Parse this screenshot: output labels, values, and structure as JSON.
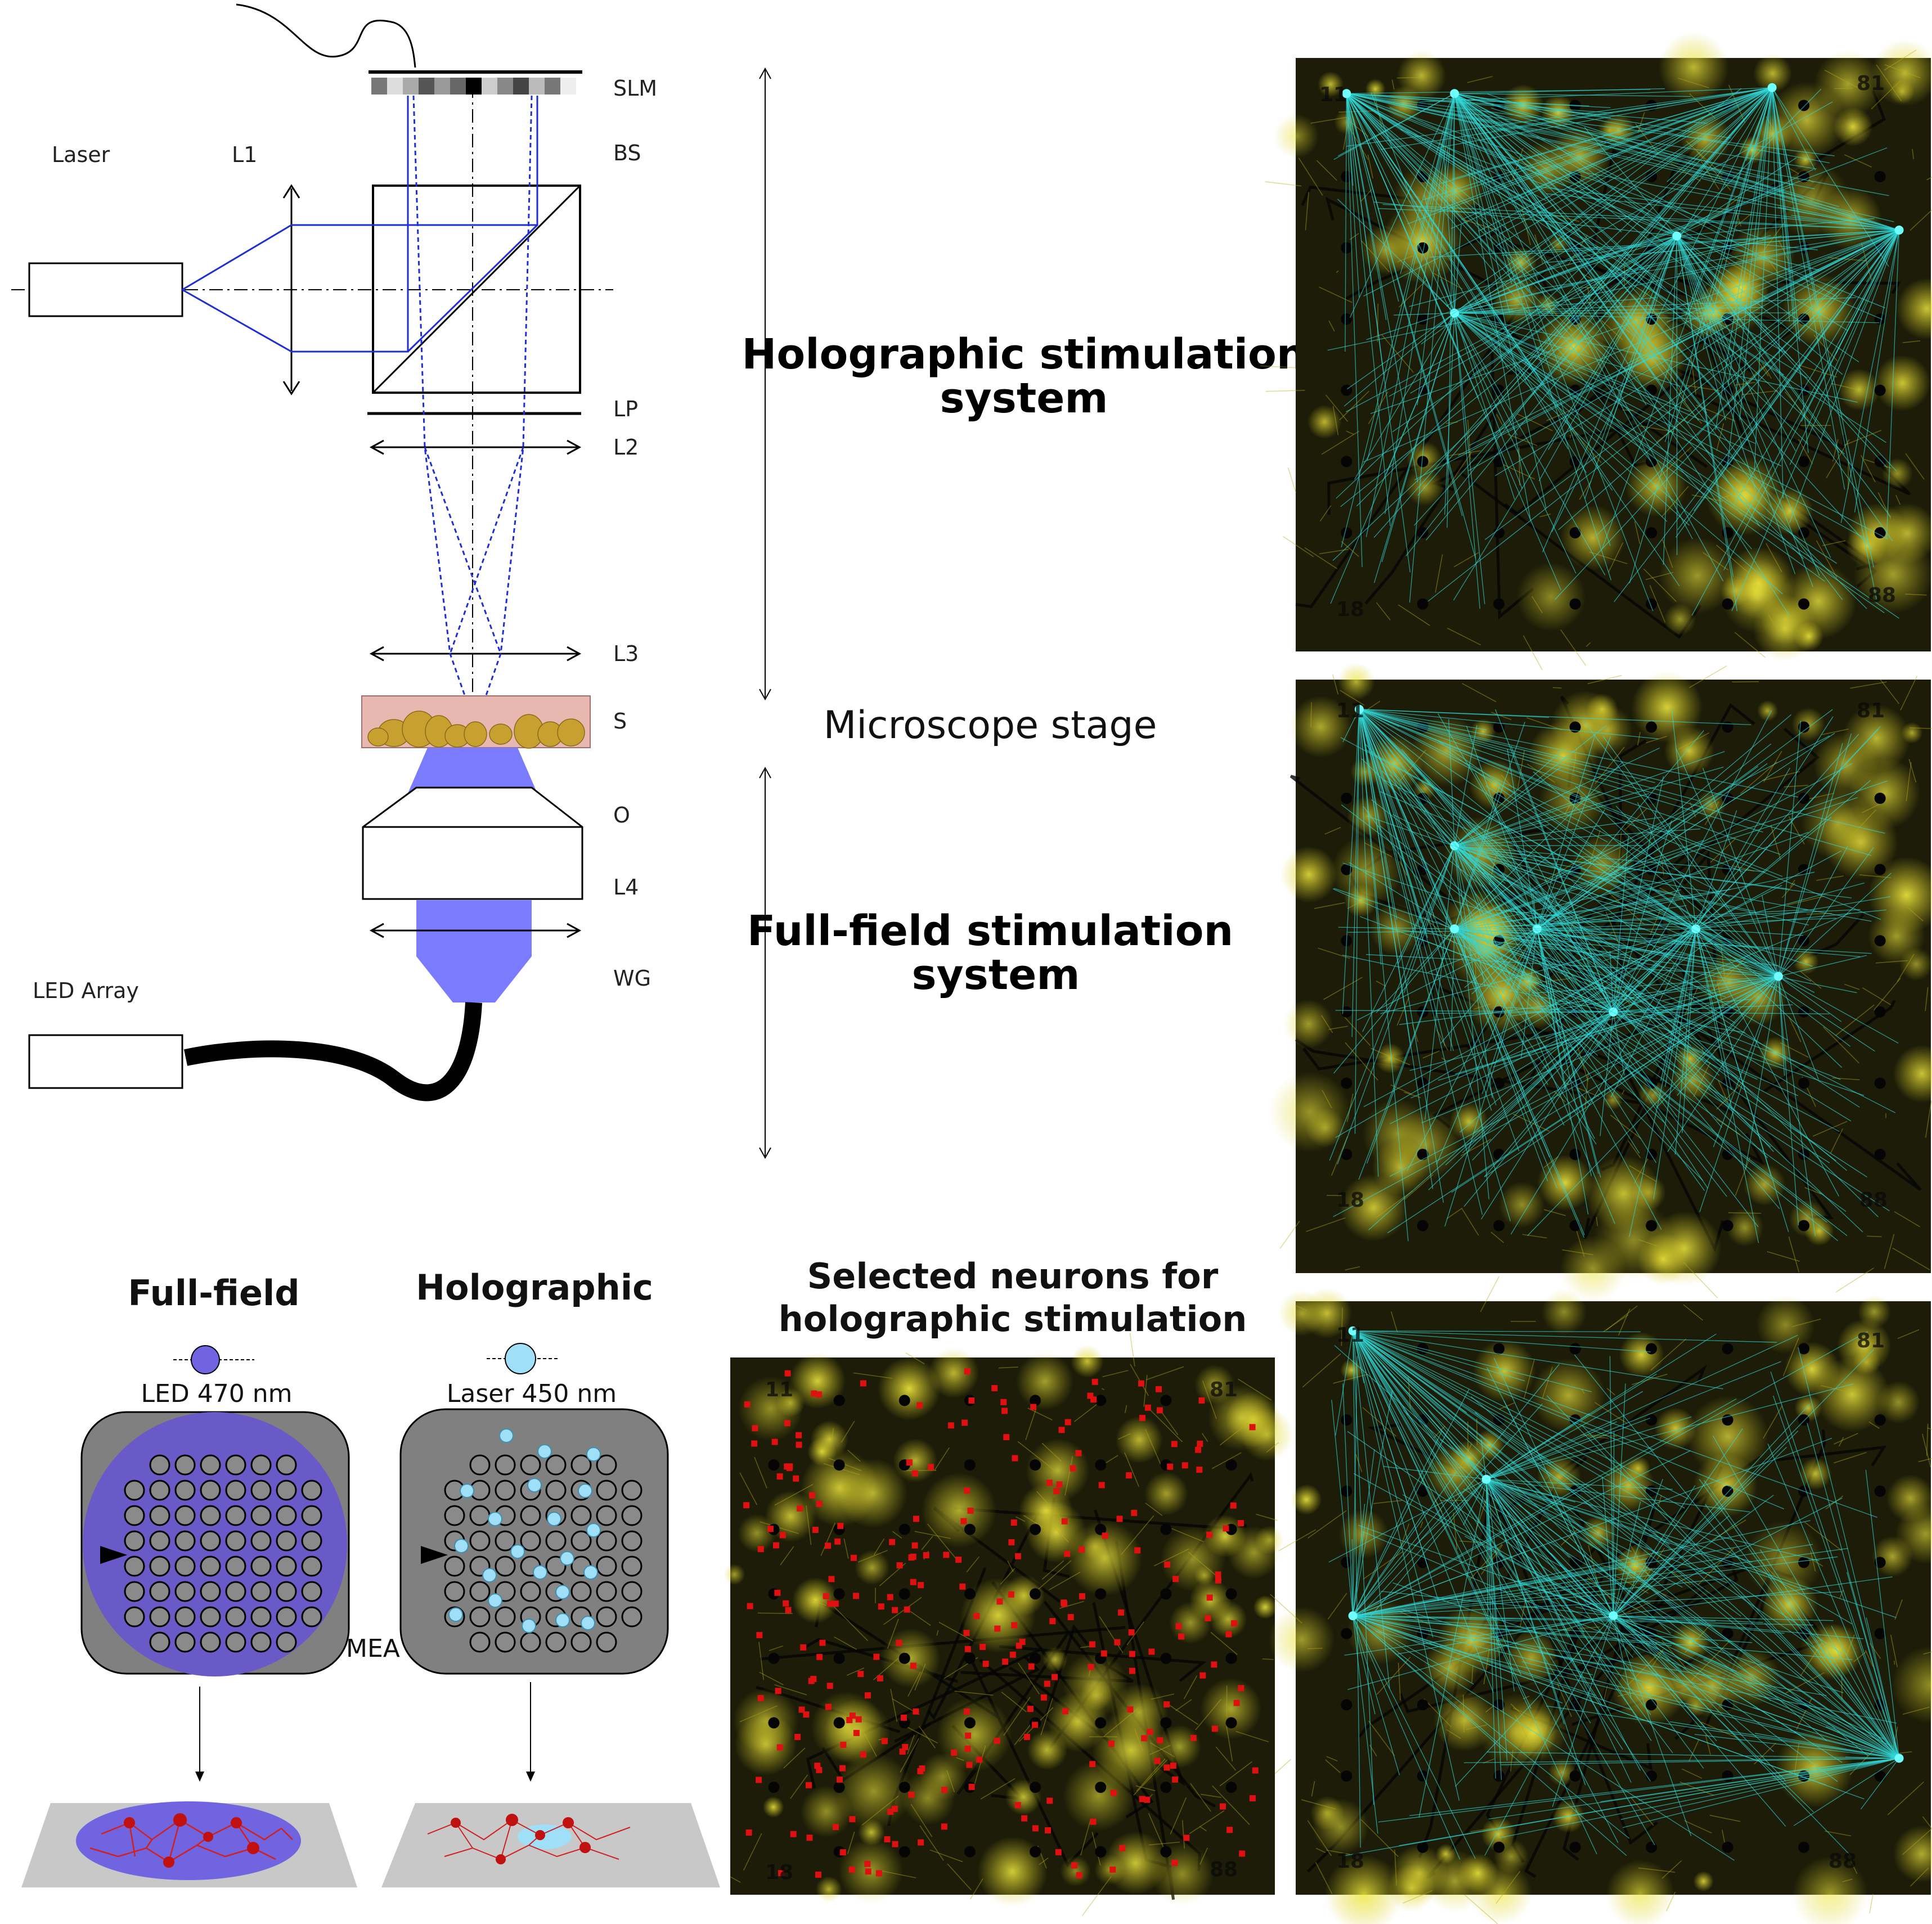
{
  "optics": {
    "labels": {
      "slm": "SLM",
      "bs": "BS",
      "laser": "Laser",
      "l1": "L1",
      "lp": "LP",
      "l2": "L2",
      "l3": "L3",
      "s": "S",
      "o": "O",
      "l4": "L4",
      "wg": "WG",
      "led_array": "LED Array"
    },
    "colors": {
      "beam": "#1f2fd0",
      "led_light": "#7b7bff",
      "sample": "#e8b8b0",
      "cell": "#c8a030"
    }
  },
  "systems": {
    "holographic": [
      "Holographic stimulation",
      "system"
    ],
    "stage": "Microscope stage",
    "full_field": [
      "Full-field stimulation",
      "system"
    ]
  },
  "schematic": {
    "full_field_title": "Full-field",
    "holographic_title": "Holographic",
    "led_label": "LED 470 nm",
    "laser_label": "Laser 450 nm",
    "mea_label": "MEA",
    "colors": {
      "led": "#7064e0",
      "laser": "#9fe0f8",
      "mea_body": "#808080",
      "led_field": "#6a5ac8"
    }
  },
  "selected": {
    "title": [
      "Selected neurons for",
      "holographic stimulation"
    ],
    "corner_labels": [
      "11",
      "81",
      "18",
      "88"
    ]
  },
  "micrographs": {
    "corner_labels": [
      "11",
      "81",
      "18",
      "88"
    ],
    "colors": {
      "culture": "#d8cc20",
      "background": "#1c1c08",
      "connections": "#30d8d8"
    }
  }
}
